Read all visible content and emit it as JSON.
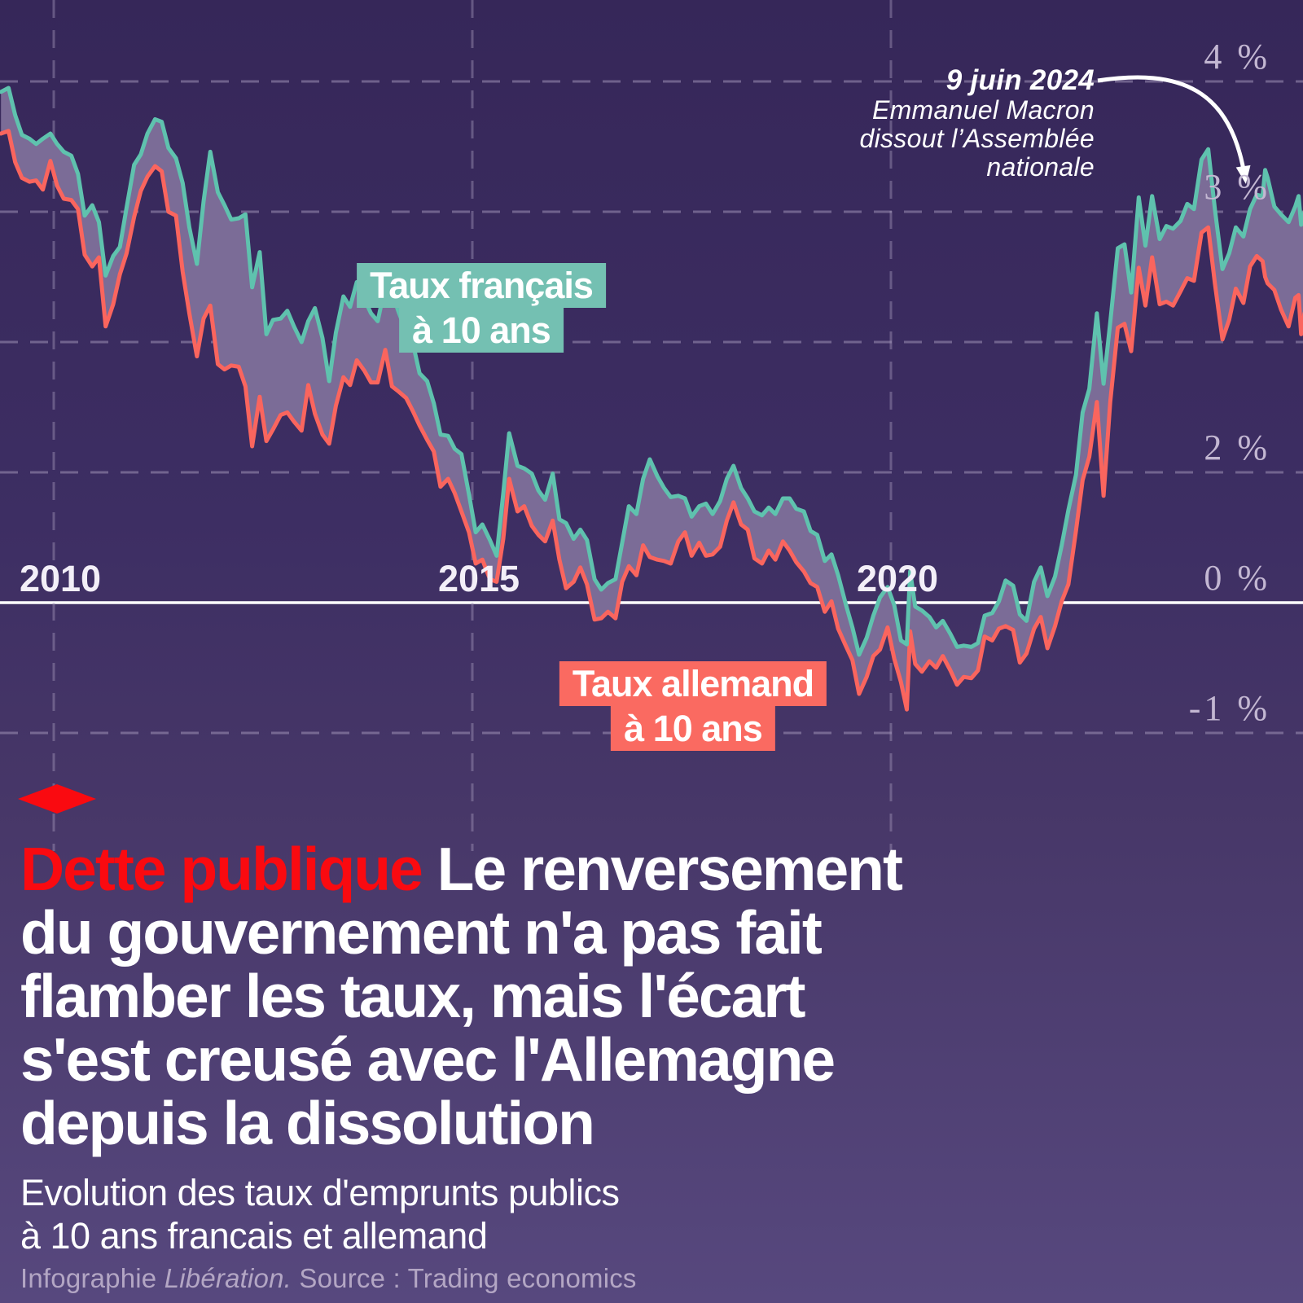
{
  "chart_data": {
    "type": "line",
    "description": "Two jagged time-series lines (French and German 10-year government bond yields) with the spread between them filled as a mauve band; dashed gridlines; solid white zero line",
    "unit": "%",
    "x_range": [
      2009.36,
      2024.95
    ],
    "y_range": [
      -1.45,
      4.25
    ],
    "grid": "dashed",
    "x_ticks": [
      {
        "label": "2010",
        "year": 2010
      },
      {
        "label": "2015",
        "year": 2015
      },
      {
        "label": "2020",
        "year": 2020
      }
    ],
    "y_ticks": [
      {
        "label": "4 %",
        "value": 4
      },
      {
        "label": "3 %",
        "value": 3
      },
      {
        "label": "2 %",
        "value": 2,
        "label_at": 1
      },
      {
        "label": "",
        "value": 1
      },
      {
        "label": "0 %",
        "value": 0,
        "zero_line": true
      },
      {
        "label": "-1 %",
        "value": -1
      }
    ],
    "series": [
      {
        "name": "Taux français à 10 ans",
        "key": "france",
        "color": "#5fc2ae"
      },
      {
        "name": "Taux allemand à 10 ans",
        "key": "germany",
        "color": "#fa655e"
      }
    ],
    "band_fill_color": "#7b6c97",
    "points_format": [
      "year",
      "france_pct",
      "germany_pct"
    ],
    "points": [
      [
        2009.37,
        3.92,
        3.6
      ],
      [
        2009.46,
        3.95,
        3.62
      ],
      [
        2009.54,
        3.74,
        3.38
      ],
      [
        2009.62,
        3.59,
        3.26
      ],
      [
        2009.71,
        3.56,
        3.23
      ],
      [
        2009.79,
        3.52,
        3.24
      ],
      [
        2009.87,
        3.56,
        3.17
      ],
      [
        2009.96,
        3.6,
        3.39
      ],
      [
        2010.04,
        3.52,
        3.2
      ],
      [
        2010.12,
        3.46,
        3.1
      ],
      [
        2010.21,
        3.43,
        3.09
      ],
      [
        2010.29,
        3.29,
        3.02
      ],
      [
        2010.37,
        2.97,
        2.67
      ],
      [
        2010.46,
        3.05,
        2.58
      ],
      [
        2010.54,
        2.92,
        2.65
      ],
      [
        2010.62,
        2.51,
        2.12
      ],
      [
        2010.71,
        2.66,
        2.29
      ],
      [
        2010.79,
        2.73,
        2.52
      ],
      [
        2010.87,
        3.03,
        2.68
      ],
      [
        2010.96,
        3.36,
        2.96
      ],
      [
        2011.04,
        3.44,
        3.16
      ],
      [
        2011.12,
        3.6,
        3.27
      ],
      [
        2011.21,
        3.71,
        3.35
      ],
      [
        2011.29,
        3.69,
        3.31
      ],
      [
        2011.37,
        3.49,
        3.0
      ],
      [
        2011.46,
        3.41,
        2.97
      ],
      [
        2011.54,
        3.22,
        2.54
      ],
      [
        2011.62,
        2.88,
        2.22
      ],
      [
        2011.71,
        2.6,
        1.89
      ],
      [
        2011.79,
        3.08,
        2.18
      ],
      [
        2011.87,
        3.46,
        2.28
      ],
      [
        2011.96,
        3.15,
        1.83
      ],
      [
        2012.04,
        3.05,
        1.79
      ],
      [
        2012.12,
        2.94,
        1.82
      ],
      [
        2012.21,
        2.95,
        1.81
      ],
      [
        2012.29,
        2.98,
        1.66
      ],
      [
        2012.37,
        2.42,
        1.2
      ],
      [
        2012.46,
        2.69,
        1.58
      ],
      [
        2012.54,
        2.06,
        1.24
      ],
      [
        2012.62,
        2.17,
        1.33
      ],
      [
        2012.71,
        2.18,
        1.44
      ],
      [
        2012.79,
        2.24,
        1.46
      ],
      [
        2012.87,
        2.12,
        1.39
      ],
      [
        2012.96,
        2.0,
        1.32
      ],
      [
        2013.04,
        2.16,
        1.67
      ],
      [
        2013.12,
        2.26,
        1.45
      ],
      [
        2013.21,
        2.03,
        1.29
      ],
      [
        2013.29,
        1.7,
        1.22
      ],
      [
        2013.37,
        2.07,
        1.51
      ],
      [
        2013.46,
        2.35,
        1.73
      ],
      [
        2013.54,
        2.27,
        1.67
      ],
      [
        2013.62,
        2.46,
        1.86
      ],
      [
        2013.71,
        2.33,
        1.78
      ],
      [
        2013.79,
        2.22,
        1.69
      ],
      [
        2013.87,
        2.16,
        1.69
      ],
      [
        2013.96,
        2.43,
        1.94
      ],
      [
        2014.04,
        2.38,
        1.66
      ],
      [
        2014.12,
        2.23,
        1.62
      ],
      [
        2014.21,
        2.08,
        1.57
      ],
      [
        2014.29,
        1.99,
        1.47
      ],
      [
        2014.37,
        1.76,
        1.36
      ],
      [
        2014.46,
        1.7,
        1.25
      ],
      [
        2014.54,
        1.53,
        1.16
      ],
      [
        2014.62,
        1.29,
        0.89
      ],
      [
        2014.71,
        1.28,
        0.95
      ],
      [
        2014.79,
        1.18,
        0.84
      ],
      [
        2014.87,
        1.14,
        0.7
      ],
      [
        2014.96,
        0.83,
        0.54
      ],
      [
        2015.04,
        0.54,
        0.3
      ],
      [
        2015.12,
        0.6,
        0.33
      ],
      [
        2015.21,
        0.48,
        0.18
      ],
      [
        2015.29,
        0.36,
        0.16
      ],
      [
        2015.37,
        0.84,
        0.49
      ],
      [
        2015.44,
        1.3,
        0.95
      ],
      [
        2015.54,
        1.05,
        0.7
      ],
      [
        2015.62,
        1.03,
        0.74
      ],
      [
        2015.71,
        0.99,
        0.59
      ],
      [
        2015.79,
        0.86,
        0.52
      ],
      [
        2015.87,
        0.79,
        0.47
      ],
      [
        2015.96,
        0.99,
        0.63
      ],
      [
        2016.04,
        0.64,
        0.33
      ],
      [
        2016.12,
        0.61,
        0.11
      ],
      [
        2016.21,
        0.49,
        0.16
      ],
      [
        2016.29,
        0.56,
        0.27
      ],
      [
        2016.37,
        0.48,
        0.14
      ],
      [
        2016.46,
        0.18,
        -0.13
      ],
      [
        2016.54,
        0.1,
        -0.12
      ],
      [
        2016.62,
        0.15,
        -0.07
      ],
      [
        2016.71,
        0.18,
        -0.12
      ],
      [
        2016.79,
        0.46,
        0.16
      ],
      [
        2016.87,
        0.74,
        0.28
      ],
      [
        2016.96,
        0.68,
        0.21
      ],
      [
        2017.04,
        0.95,
        0.44
      ],
      [
        2017.12,
        1.1,
        0.35
      ],
      [
        2017.21,
        0.97,
        0.33
      ],
      [
        2017.29,
        0.88,
        0.32
      ],
      [
        2017.37,
        0.81,
        0.3
      ],
      [
        2017.46,
        0.82,
        0.47
      ],
      [
        2017.54,
        0.8,
        0.54
      ],
      [
        2017.62,
        0.66,
        0.36
      ],
      [
        2017.71,
        0.74,
        0.46
      ],
      [
        2017.79,
        0.76,
        0.36
      ],
      [
        2017.87,
        0.68,
        0.37
      ],
      [
        2017.96,
        0.78,
        0.43
      ],
      [
        2018.04,
        0.95,
        0.63
      ],
      [
        2018.12,
        1.05,
        0.77
      ],
      [
        2018.21,
        0.88,
        0.6
      ],
      [
        2018.29,
        0.8,
        0.56
      ],
      [
        2018.37,
        0.7,
        0.34
      ],
      [
        2018.46,
        0.67,
        0.3
      ],
      [
        2018.54,
        0.73,
        0.4
      ],
      [
        2018.62,
        0.68,
        0.33
      ],
      [
        2018.71,
        0.8,
        0.47
      ],
      [
        2018.79,
        0.8,
        0.4
      ],
      [
        2018.87,
        0.72,
        0.31
      ],
      [
        2018.96,
        0.7,
        0.24
      ],
      [
        2019.04,
        0.55,
        0.15
      ],
      [
        2019.12,
        0.52,
        0.12
      ],
      [
        2019.21,
        0.32,
        -0.07
      ],
      [
        2019.29,
        0.37,
        0.01
      ],
      [
        2019.37,
        0.21,
        -0.2
      ],
      [
        2019.46,
        -0.01,
        -0.33
      ],
      [
        2019.54,
        -0.19,
        -0.44
      ],
      [
        2019.62,
        -0.4,
        -0.7
      ],
      [
        2019.71,
        -0.27,
        -0.57
      ],
      [
        2019.79,
        -0.1,
        -0.41
      ],
      [
        2019.87,
        0.04,
        -0.36
      ],
      [
        2019.96,
        0.12,
        -0.19
      ],
      [
        2020.04,
        -0.02,
        -0.43
      ],
      [
        2020.12,
        -0.29,
        -0.61
      ],
      [
        2020.19,
        -0.32,
        -0.82
      ],
      [
        2020.23,
        0.24,
        -0.22
      ],
      [
        2020.29,
        -0.03,
        -0.47
      ],
      [
        2020.37,
        -0.06,
        -0.53
      ],
      [
        2020.46,
        -0.11,
        -0.45
      ],
      [
        2020.54,
        -0.19,
        -0.5
      ],
      [
        2020.62,
        -0.14,
        -0.41
      ],
      [
        2020.71,
        -0.24,
        -0.52
      ],
      [
        2020.79,
        -0.34,
        -0.63
      ],
      [
        2020.87,
        -0.33,
        -0.57
      ],
      [
        2020.96,
        -0.34,
        -0.58
      ],
      [
        2021.04,
        -0.31,
        -0.52
      ],
      [
        2021.12,
        -0.1,
        -0.26
      ],
      [
        2021.21,
        -0.08,
        -0.29
      ],
      [
        2021.29,
        0.01,
        -0.2
      ],
      [
        2021.37,
        0.17,
        -0.18
      ],
      [
        2021.46,
        0.13,
        -0.21
      ],
      [
        2021.54,
        -0.09,
        -0.46
      ],
      [
        2021.62,
        -0.14,
        -0.39
      ],
      [
        2021.71,
        0.16,
        -0.2
      ],
      [
        2021.79,
        0.27,
        -0.11
      ],
      [
        2021.87,
        0.05,
        -0.35
      ],
      [
        2021.96,
        0.2,
        -0.18
      ],
      [
        2022.04,
        0.44,
        0.01
      ],
      [
        2022.12,
        0.71,
        0.14
      ],
      [
        2022.21,
        0.98,
        0.55
      ],
      [
        2022.29,
        1.46,
        0.94
      ],
      [
        2022.37,
        1.64,
        1.12
      ],
      [
        2022.46,
        2.22,
        1.54
      ],
      [
        2022.54,
        1.68,
        0.82
      ],
      [
        2022.62,
        2.15,
        1.54
      ],
      [
        2022.71,
        2.72,
        2.11
      ],
      [
        2022.79,
        2.75,
        2.14
      ],
      [
        2022.87,
        2.38,
        1.93
      ],
      [
        2022.96,
        3.11,
        2.57
      ],
      [
        2023.04,
        2.74,
        2.28
      ],
      [
        2023.12,
        3.12,
        2.65
      ],
      [
        2023.21,
        2.79,
        2.29
      ],
      [
        2023.29,
        2.89,
        2.31
      ],
      [
        2023.37,
        2.87,
        2.28
      ],
      [
        2023.46,
        2.93,
        2.39
      ],
      [
        2023.54,
        3.06,
        2.49
      ],
      [
        2023.62,
        3.02,
        2.47
      ],
      [
        2023.71,
        3.4,
        2.84
      ],
      [
        2023.79,
        3.48,
        2.88
      ],
      [
        2023.87,
        3.02,
        2.45
      ],
      [
        2023.96,
        2.56,
        2.02
      ],
      [
        2024.04,
        2.68,
        2.17
      ],
      [
        2024.12,
        2.88,
        2.41
      ],
      [
        2024.21,
        2.81,
        2.3
      ],
      [
        2024.29,
        3.02,
        2.58
      ],
      [
        2024.37,
        3.13,
        2.66
      ],
      [
        2024.44,
        3.12,
        2.62
      ],
      [
        2024.47,
        3.32,
        2.5
      ],
      [
        2024.5,
        3.26,
        2.45
      ],
      [
        2024.58,
        3.04,
        2.4
      ],
      [
        2024.66,
        2.98,
        2.25
      ],
      [
        2024.75,
        2.92,
        2.12
      ],
      [
        2024.83,
        3.04,
        2.34
      ],
      [
        2024.87,
        3.12,
        2.36
      ],
      [
        2024.9,
        2.9,
        2.06
      ],
      [
        2024.94,
        3.0,
        2.22
      ]
    ]
  },
  "annotation": {
    "lines": [
      "9 juin 2024",
      "Emmanuel Macron",
      "dissout l’Assemblée",
      "nationale"
    ]
  },
  "badges": {
    "french": {
      "line1": "Taux français",
      "line2": "à 10 ans",
      "color": "#74c0b2"
    },
    "german": {
      "line1": "Taux allemand",
      "line2": "à 10 ans",
      "color": "#fa6a61"
    }
  },
  "title": {
    "kicker": "Dette publique",
    "kicker_color": "#fa0a10",
    "lines": [
      "Le renversement",
      "du gouvernement n'a pas fait",
      "flamber les taux, mais l'écart",
      "s'est creusé avec l'Allemagne",
      "depuis la dissolution"
    ]
  },
  "subtitle": {
    "line1": "Evolution des taux d'emprunts publics",
    "line2": "à 10 ans francais et allemand"
  },
  "footer": {
    "prefix": "Infographie ",
    "brand": "Libération.",
    "suffix": " Source : Trading economics"
  },
  "colors": {
    "background_top": "#362759",
    "background_bottom": "#57487e",
    "france_line": "#5fc2ae",
    "germany_line": "#fa655e",
    "band_fill": "#7b6c97",
    "gridline": "#a79bbd",
    "zero_line": "#ffffff",
    "axis_label": "#c3b7d2",
    "title_red": "#fa0a10",
    "footer_text": "#b3a6c4"
  }
}
